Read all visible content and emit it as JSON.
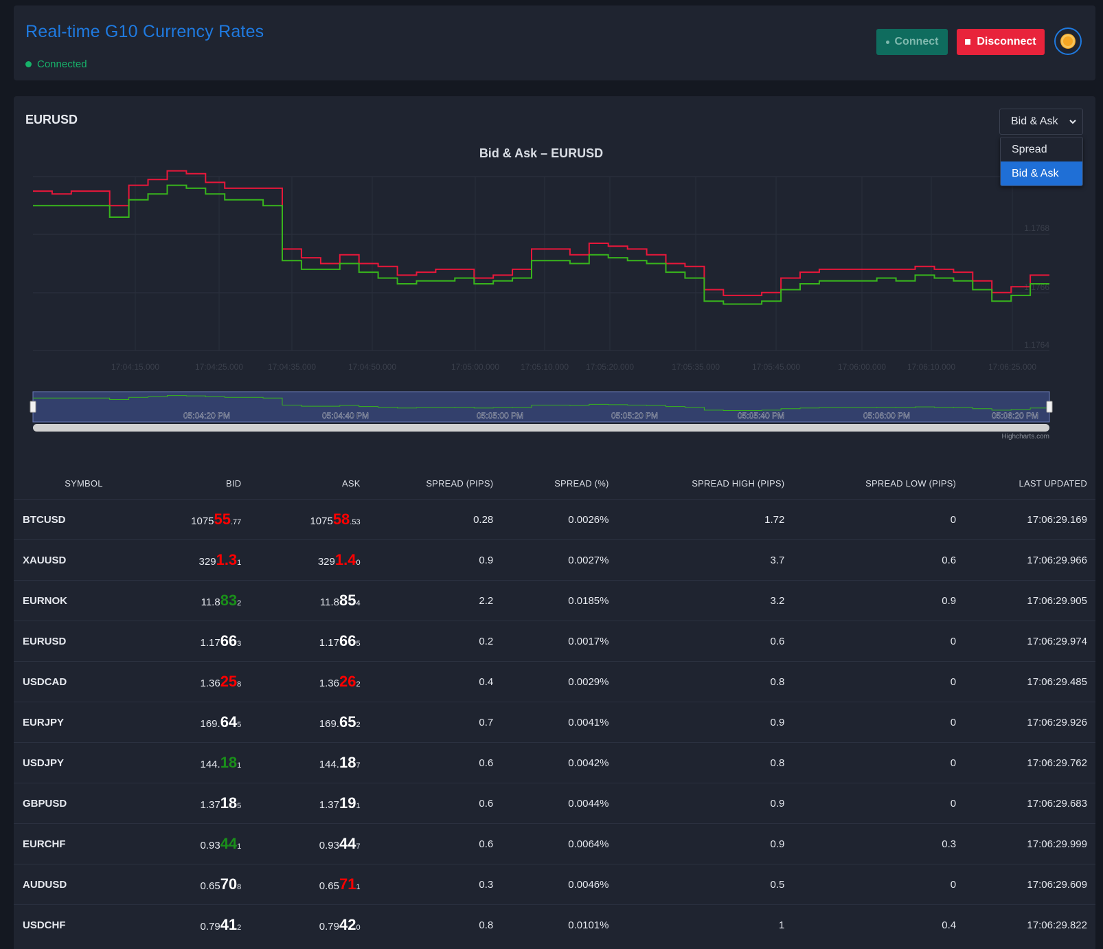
{
  "header": {
    "title": "Real-time G10 Currency Rates",
    "status": "Connected",
    "connect_label": "Connect",
    "disconnect_label": "Disconnect"
  },
  "chart_panel": {
    "symbol": "EURUSD",
    "view_select": {
      "selected": "Bid & Ask",
      "options": [
        "Spread",
        "Bid & Ask"
      ]
    }
  },
  "chart_data": {
    "type": "line",
    "title": "Bid & Ask – EURUSD",
    "xlabel": "",
    "ylabel": "",
    "x_tick_labels": [
      "17:04:15.000",
      "17:04:25.000",
      "17:04:35.000",
      "17:04:50.000",
      "17:05:00.000",
      "17:05:10.000",
      "17:05:20.000",
      "17:05:35.000",
      "17:05:45.000",
      "17:06:00.000",
      "17:06:10.000",
      "17:06:25.000"
    ],
    "y_tick_labels": [
      "1.1768",
      "1.1766",
      "1.1764"
    ],
    "ylim": [
      1.1764,
      1.177
    ],
    "navigator_labels": [
      "05:04:20 PM",
      "05:04:40 PM",
      "05:05:00 PM",
      "05:05:20 PM",
      "05:05:40 PM",
      "05:06:00 PM",
      "05:06:20 PM"
    ],
    "credit": "Highcharts.com",
    "series": [
      {
        "color": "#e8173a",
        "values": [
          1.17695,
          1.17694,
          1.17695,
          1.17695,
          1.1769,
          1.17697,
          1.17699,
          1.17702,
          1.17701,
          1.17698,
          1.17696,
          1.17696,
          1.17696,
          1.17675,
          1.17672,
          1.1767,
          1.17673,
          1.1767,
          1.17669,
          1.17666,
          1.17667,
          1.17668,
          1.17668,
          1.17665,
          1.17666,
          1.17668,
          1.17675,
          1.17675,
          1.17673,
          1.17677,
          1.17676,
          1.17675,
          1.17673,
          1.1767,
          1.17669,
          1.17661,
          1.17659,
          1.17659,
          1.1766,
          1.17665,
          1.17667,
          1.17668,
          1.17668,
          1.17668,
          1.17668,
          1.17668,
          1.17669,
          1.17668,
          1.17667,
          1.17664,
          1.1766,
          1.17662,
          1.17666
        ]
      },
      {
        "color": "#38b51c",
        "values": [
          1.1769,
          1.1769,
          1.1769,
          1.1769,
          1.17686,
          1.17692,
          1.17694,
          1.17697,
          1.17696,
          1.17694,
          1.17692,
          1.17692,
          1.1769,
          1.17671,
          1.17668,
          1.17668,
          1.1767,
          1.17667,
          1.17665,
          1.17663,
          1.17664,
          1.17664,
          1.17665,
          1.17663,
          1.17664,
          1.17665,
          1.17671,
          1.17671,
          1.1767,
          1.17673,
          1.17672,
          1.17671,
          1.1767,
          1.17667,
          1.17665,
          1.17657,
          1.17656,
          1.17656,
          1.17657,
          1.17661,
          1.17663,
          1.17664,
          1.17664,
          1.17664,
          1.17665,
          1.17664,
          1.17666,
          1.17665,
          1.17664,
          1.17661,
          1.17657,
          1.17659,
          1.17663
        ]
      }
    ]
  },
  "table": {
    "headers": [
      "SYMBOL",
      "BID",
      "ASK",
      "SPREAD (PIPS)",
      "SPREAD (%)",
      "SPREAD HIGH (PIPS)",
      "SPREAD LOW (PIPS)",
      "LAST UPDATED"
    ],
    "rows": [
      {
        "symbol": "BTCUSD",
        "bid": {
          "pre": "1075",
          "big": "55",
          "pip": ".77",
          "dir": "down"
        },
        "ask": {
          "pre": "1075",
          "big": "58",
          "pip": ".53",
          "dir": "down"
        },
        "spread_pips": "0.28",
        "spread_pct": "0.0026%",
        "spread_high": "1.72",
        "spread_low": "0",
        "updated": "17:06:29.169"
      },
      {
        "symbol": "XAUUSD",
        "bid": {
          "pre": "329",
          "big": "1.3",
          "pip": "1",
          "dir": "down"
        },
        "ask": {
          "pre": "329",
          "big": "1.4",
          "pip": "0",
          "dir": "down"
        },
        "spread_pips": "0.9",
        "spread_pct": "0.0027%",
        "spread_high": "3.7",
        "spread_low": "0.6",
        "updated": "17:06:29.966"
      },
      {
        "symbol": "EURNOK",
        "bid": {
          "pre": "11.8",
          "big": "83",
          "pip": "2",
          "dir": "up"
        },
        "ask": {
          "pre": "11.8",
          "big": "85",
          "pip": "4",
          "dir": "neutral"
        },
        "spread_pips": "2.2",
        "spread_pct": "0.0185%",
        "spread_high": "3.2",
        "spread_low": "0.9",
        "updated": "17:06:29.905"
      },
      {
        "symbol": "EURUSD",
        "bid": {
          "pre": "1.17",
          "big": "66",
          "pip": "3",
          "dir": "neutral"
        },
        "ask": {
          "pre": "1.17",
          "big": "66",
          "pip": "5",
          "dir": "neutral"
        },
        "spread_pips": "0.2",
        "spread_pct": "0.0017%",
        "spread_high": "0.6",
        "spread_low": "0",
        "updated": "17:06:29.974"
      },
      {
        "symbol": "USDCAD",
        "bid": {
          "pre": "1.36",
          "big": "25",
          "pip": "8",
          "dir": "down"
        },
        "ask": {
          "pre": "1.36",
          "big": "26",
          "pip": "2",
          "dir": "down"
        },
        "spread_pips": "0.4",
        "spread_pct": "0.0029%",
        "spread_high": "0.8",
        "spread_low": "0",
        "updated": "17:06:29.485"
      },
      {
        "symbol": "EURJPY",
        "bid": {
          "pre": "169.",
          "big": "64",
          "pip": "5",
          "dir": "neutral"
        },
        "ask": {
          "pre": "169.",
          "big": "65",
          "pip": "2",
          "dir": "neutral"
        },
        "spread_pips": "0.7",
        "spread_pct": "0.0041%",
        "spread_high": "0.9",
        "spread_low": "0",
        "updated": "17:06:29.926"
      },
      {
        "symbol": "USDJPY",
        "bid": {
          "pre": "144.",
          "big": "18",
          "pip": "1",
          "dir": "up"
        },
        "ask": {
          "pre": "144.",
          "big": "18",
          "pip": "7",
          "dir": "neutral"
        },
        "spread_pips": "0.6",
        "spread_pct": "0.0042%",
        "spread_high": "0.8",
        "spread_low": "0",
        "updated": "17:06:29.762"
      },
      {
        "symbol": "GBPUSD",
        "bid": {
          "pre": "1.37",
          "big": "18",
          "pip": "5",
          "dir": "neutral"
        },
        "ask": {
          "pre": "1.37",
          "big": "19",
          "pip": "1",
          "dir": "neutral"
        },
        "spread_pips": "0.6",
        "spread_pct": "0.0044%",
        "spread_high": "0.9",
        "spread_low": "0",
        "updated": "17:06:29.683"
      },
      {
        "symbol": "EURCHF",
        "bid": {
          "pre": "0.93",
          "big": "44",
          "pip": "1",
          "dir": "up"
        },
        "ask": {
          "pre": "0.93",
          "big": "44",
          "pip": "7",
          "dir": "neutral"
        },
        "spread_pips": "0.6",
        "spread_pct": "0.0064%",
        "spread_high": "0.9",
        "spread_low": "0.3",
        "updated": "17:06:29.999"
      },
      {
        "symbol": "AUDUSD",
        "bid": {
          "pre": "0.65",
          "big": "70",
          "pip": "8",
          "dir": "neutral"
        },
        "ask": {
          "pre": "0.65",
          "big": "71",
          "pip": "1",
          "dir": "down"
        },
        "spread_pips": "0.3",
        "spread_pct": "0.0046%",
        "spread_high": "0.5",
        "spread_low": "0",
        "updated": "17:06:29.609"
      },
      {
        "symbol": "USDCHF",
        "bid": {
          "pre": "0.79",
          "big": "41",
          "pip": "2",
          "dir": "neutral"
        },
        "ask": {
          "pre": "0.79",
          "big": "42",
          "pip": "0",
          "dir": "neutral"
        },
        "spread_pips": "0.8",
        "spread_pct": "0.0101%",
        "spread_high": "1",
        "spread_low": "0.4",
        "updated": "17:06:29.822"
      }
    ]
  }
}
